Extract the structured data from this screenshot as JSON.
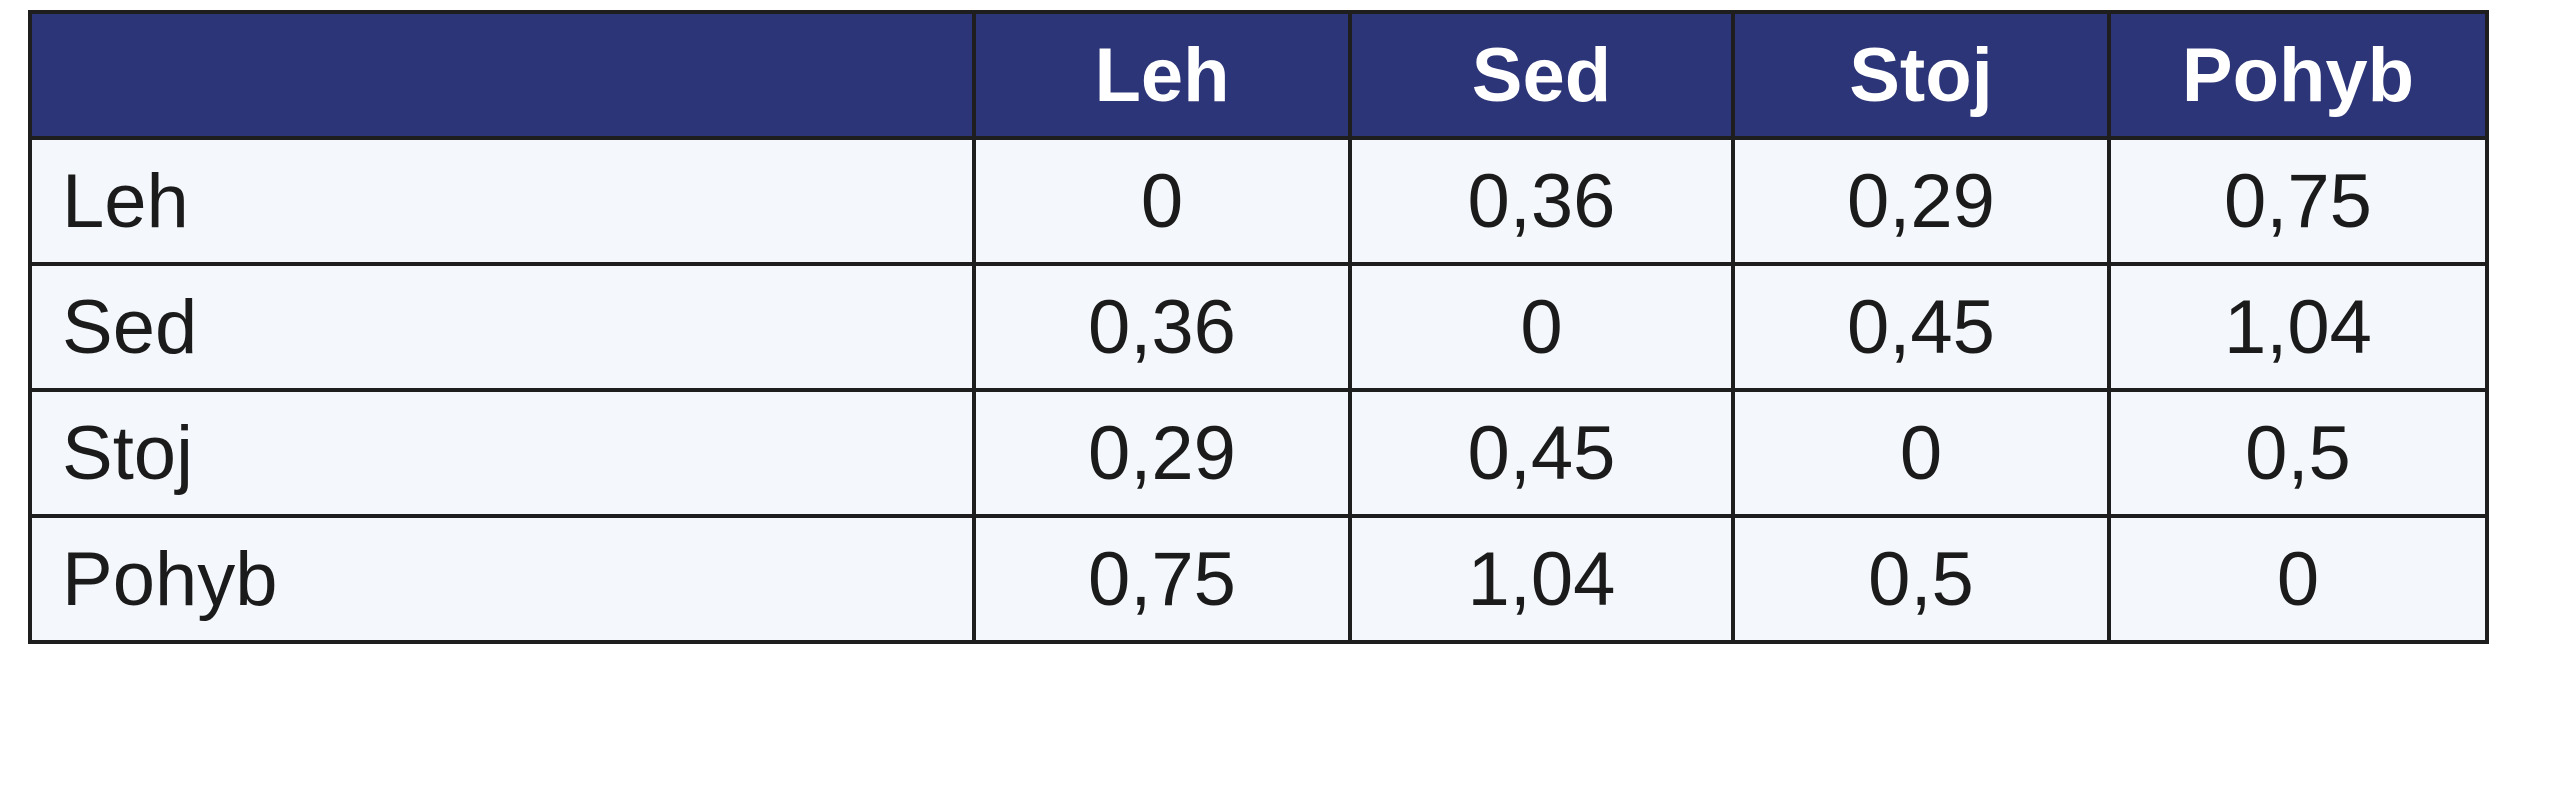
{
  "table": {
    "corner": "",
    "columns": [
      "Leh",
      "Sed",
      "Stoj",
      "Pohyb"
    ],
    "rows": [
      {
        "label": "Leh",
        "values": [
          "0",
          "0,36",
          "0,29",
          "0,75"
        ]
      },
      {
        "label": "Sed",
        "values": [
          "0,36",
          "0",
          "0,45",
          "1,04"
        ]
      },
      {
        "label": "Stoj",
        "values": [
          "0,29",
          "0,45",
          "0",
          "0,5"
        ]
      },
      {
        "label": "Pohyb",
        "values": [
          "0,75",
          "1,04",
          "0,5",
          "0"
        ]
      }
    ]
  },
  "colors": {
    "header_bg": "#2c3577",
    "header_text": "#ffffff",
    "cell_bg": "#f4f8fc",
    "border": "#1e1e1e"
  }
}
